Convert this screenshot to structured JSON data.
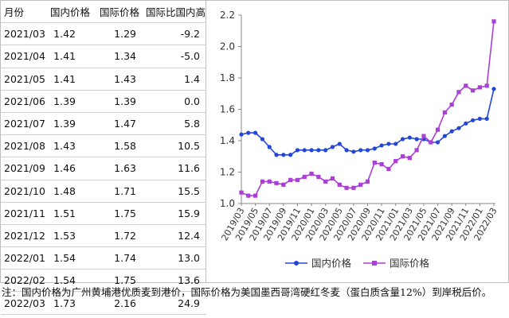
{
  "table": {
    "headers": [
      "月份",
      "国内价格",
      "国际价格",
      "国际比国内高"
    ],
    "rows": [
      [
        "2021/03",
        "1.42",
        "1.29",
        "-9.2"
      ],
      [
        "2021/04",
        "1.41",
        "1.34",
        "-5.0"
      ],
      [
        "2021/05",
        "1.41",
        "1.43",
        "1.4"
      ],
      [
        "2021/06",
        "1.39",
        "1.39",
        "0.0"
      ],
      [
        "2021/07",
        "1.39",
        "1.47",
        "5.8"
      ],
      [
        "2021/08",
        "1.43",
        "1.58",
        "10.5"
      ],
      [
        "2021/09",
        "1.46",
        "1.63",
        "11.6"
      ],
      [
        "2021/10",
        "1.48",
        "1.71",
        "15.5"
      ],
      [
        "2021/11",
        "1.51",
        "1.75",
        "15.9"
      ],
      [
        "2021/12",
        "1.53",
        "1.72",
        "12.4"
      ],
      [
        "2022/01",
        "1.54",
        "1.74",
        "13.0"
      ],
      [
        "2022/02",
        "1.54",
        "1.75",
        "13.6"
      ],
      [
        "2022/03",
        "1.73",
        "2.16",
        "24.9"
      ]
    ]
  },
  "chart_data": {
    "type": "line",
    "title": "",
    "xlabel": "",
    "ylabel": "",
    "ylim": [
      1.0,
      2.2
    ],
    "yticks": [
      "1.0",
      "1.2",
      "1.4",
      "1.6",
      "1.8",
      "2.0",
      "2.2"
    ],
    "grid": false,
    "legend_position": "bottom",
    "x": [
      "2019/03",
      "2019/04",
      "2019/05",
      "2019/06",
      "2019/07",
      "2019/08",
      "2019/09",
      "2019/10",
      "2019/11",
      "2019/12",
      "2020/01",
      "2020/02",
      "2020/03",
      "2020/04",
      "2020/05",
      "2020/06",
      "2020/07",
      "2020/08",
      "2020/09",
      "2020/10",
      "2020/11",
      "2020/12",
      "2021/01",
      "2021/02",
      "2021/03",
      "2021/04",
      "2021/05",
      "2021/06",
      "2021/07",
      "2021/08",
      "2021/09",
      "2021/10",
      "2021/11",
      "2021/12",
      "2022/01",
      "2022/02",
      "2022/03"
    ],
    "xtick_labels": [
      "2019/03",
      "2019/05",
      "2019/07",
      "2019/09",
      "2019/11",
      "2020/01",
      "2020/03",
      "2020/05",
      "2020/07",
      "2020/09",
      "2020/11",
      "2021/01",
      "2021/03",
      "2021/05",
      "2021/07",
      "2021/09",
      "2021/11",
      "2022/01",
      "2022/03"
    ],
    "series": [
      {
        "name": "国内价格",
        "color": "#2347d9",
        "marker": "circle",
        "values": [
          1.44,
          1.45,
          1.45,
          1.41,
          1.36,
          1.31,
          1.31,
          1.31,
          1.34,
          1.34,
          1.34,
          1.34,
          1.34,
          1.36,
          1.38,
          1.34,
          1.33,
          1.34,
          1.34,
          1.35,
          1.37,
          1.38,
          1.38,
          1.41,
          1.42,
          1.41,
          1.41,
          1.39,
          1.39,
          1.43,
          1.46,
          1.48,
          1.51,
          1.53,
          1.54,
          1.54,
          1.73
        ]
      },
      {
        "name": "国际价格",
        "color": "#a93fd4",
        "marker": "square",
        "values": [
          1.07,
          1.05,
          1.05,
          1.14,
          1.14,
          1.13,
          1.12,
          1.15,
          1.15,
          1.17,
          1.19,
          1.17,
          1.14,
          1.16,
          1.12,
          1.1,
          1.1,
          1.12,
          1.14,
          1.26,
          1.25,
          1.22,
          1.27,
          1.3,
          1.29,
          1.34,
          1.43,
          1.39,
          1.47,
          1.58,
          1.63,
          1.71,
          1.75,
          1.72,
          1.74,
          1.75,
          2.16
        ]
      }
    ]
  },
  "note": "注：国内价格为广州黄埔港优质麦到港价，国际价格为美国墨西哥湾硬红冬麦（蛋白质含量12%）到岸税后价。"
}
